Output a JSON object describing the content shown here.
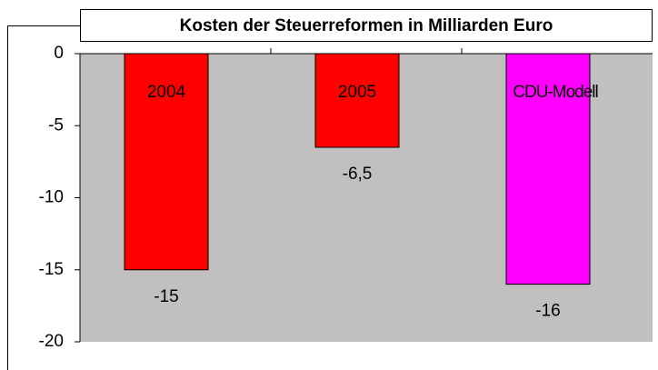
{
  "chart_data": {
    "type": "bar",
    "title": "Kosten der Steuerreformen in Milliarden Euro",
    "categories": [
      "2004",
      "2005",
      "CDU-Modell"
    ],
    "values": [
      -15,
      -6.5,
      -16
    ],
    "value_labels": [
      "-15",
      "-6,5",
      "-16"
    ],
    "colors": [
      "#ff0000",
      "#ff0000",
      "#ff00ff"
    ],
    "ylim": [
      -20,
      0
    ],
    "yticks": [
      0,
      -5,
      -10,
      -15,
      -20
    ]
  }
}
